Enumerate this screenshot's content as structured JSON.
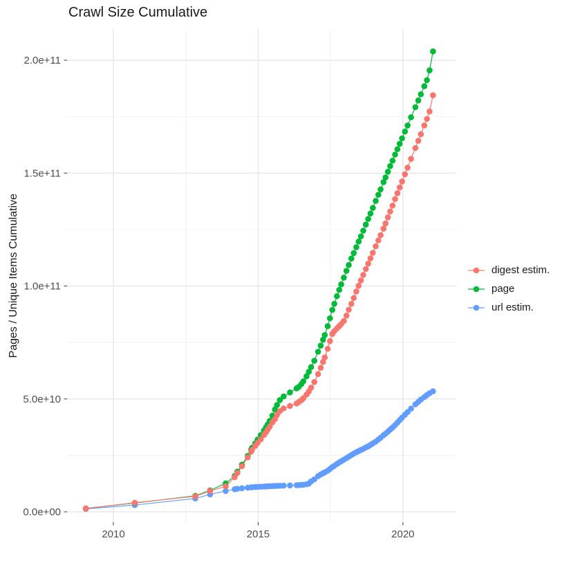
{
  "chart_data": {
    "type": "scatter",
    "title": "Crawl Size Cumulative",
    "x_axis": {
      "lim": [
        2008.4,
        2021.83
      ],
      "ticks": [
        {
          "v": 2010,
          "label": "2010"
        },
        {
          "v": 2015,
          "label": "2015"
        },
        {
          "v": 2020,
          "label": "2020"
        }
      ],
      "minor": [
        2012.5,
        2017.5
      ]
    },
    "y_axis": {
      "title": "Pages / Unique Items Cumulative",
      "unit": 1000000000,
      "lim": [
        -4.6,
        213.8
      ],
      "ticks": [
        {
          "v": 0,
          "label": "0.0e+00"
        },
        {
          "v": 50,
          "label": "5.0e+10"
        },
        {
          "v": 100,
          "label": "1.0e+11"
        },
        {
          "v": 150,
          "label": "1.5e+11"
        },
        {
          "v": 200,
          "label": "2.0e+11"
        }
      ],
      "minor": [
        25,
        75,
        125,
        175
      ]
    },
    "grid": {
      "major_color": "#e5e5e5",
      "minor_color": "#f1f1f1",
      "tick_color": "#333333"
    },
    "legend_position": "right",
    "series": [
      {
        "name": "digest estim.",
        "color": "#F8766D",
        "z": 3,
        "points": [
          [
            2009.05,
            1.5
          ],
          [
            2010.74,
            4.0
          ],
          [
            2012.83,
            6.9
          ],
          [
            2013.34,
            9.2
          ],
          [
            2013.88,
            11.3
          ],
          [
            2014.19,
            15.3
          ],
          [
            2014.28,
            17.2
          ],
          [
            2014.44,
            20.2
          ],
          [
            2014.64,
            24.1
          ],
          [
            2014.76,
            26.7
          ],
          [
            2014.79,
            27.4
          ],
          [
            2014.9,
            29.2
          ],
          [
            2014.98,
            30.5
          ],
          [
            2015.09,
            32.1
          ],
          [
            2015.2,
            34.0
          ],
          [
            2015.27,
            35.2
          ],
          [
            2015.33,
            36.4
          ],
          [
            2015.4,
            37.7
          ],
          [
            2015.49,
            39.6
          ],
          [
            2015.58,
            41.0
          ],
          [
            2015.65,
            42.9
          ],
          [
            2015.75,
            44.6
          ],
          [
            2015.88,
            45.8
          ],
          [
            2016.1,
            46.9
          ],
          [
            2016.33,
            48.0
          ],
          [
            2016.4,
            48.6
          ],
          [
            2016.49,
            49.4
          ],
          [
            2016.56,
            50.3
          ],
          [
            2016.67,
            51.9
          ],
          [
            2016.75,
            53.3
          ],
          [
            2016.83,
            55.0
          ],
          [
            2016.94,
            57.5
          ],
          [
            2017.07,
            61.0
          ],
          [
            2017.16,
            63.8
          ],
          [
            2017.24,
            66.4
          ],
          [
            2017.3,
            68.4
          ],
          [
            2017.4,
            72.2
          ],
          [
            2017.48,
            75.6
          ],
          [
            2017.56,
            78.8
          ],
          [
            2017.63,
            80.0
          ],
          [
            2017.72,
            81.2
          ],
          [
            2017.8,
            82.2
          ],
          [
            2017.87,
            83.2
          ],
          [
            2017.96,
            84.5
          ],
          [
            2018.05,
            86.9
          ],
          [
            2018.13,
            89.5
          ],
          [
            2018.22,
            92.1
          ],
          [
            2018.3,
            94.7
          ],
          [
            2018.39,
            97.6
          ],
          [
            2018.47,
            100.1
          ],
          [
            2018.55,
            102.5
          ],
          [
            2018.63,
            104.9
          ],
          [
            2018.72,
            107.5
          ],
          [
            2018.8,
            109.9
          ],
          [
            2018.88,
            112.3
          ],
          [
            2018.96,
            114.7
          ],
          [
            2019.06,
            117.6
          ],
          [
            2019.15,
            120.2
          ],
          [
            2019.23,
            122.5
          ],
          [
            2019.33,
            125.4
          ],
          [
            2019.4,
            127.7
          ],
          [
            2019.48,
            130.4
          ],
          [
            2019.56,
            133.0
          ],
          [
            2019.64,
            135.6
          ],
          [
            2019.73,
            138.5
          ],
          [
            2019.81,
            141.1
          ],
          [
            2019.89,
            143.7
          ],
          [
            2019.97,
            146.3
          ],
          [
            2020.07,
            149.5
          ],
          [
            2020.16,
            152.4
          ],
          [
            2020.28,
            156.3
          ],
          [
            2020.43,
            161.1
          ],
          [
            2020.53,
            164.3
          ],
          [
            2020.62,
            167.2
          ],
          [
            2020.74,
            171.1
          ],
          [
            2020.83,
            174.0
          ],
          [
            2020.92,
            177.3
          ],
          [
            2021.04,
            184.5
          ]
        ]
      },
      {
        "name": "page",
        "color": "#00BA38",
        "z": 2,
        "points": [
          [
            2009.05,
            1.5
          ],
          [
            2010.74,
            3.9
          ],
          [
            2012.83,
            7.1
          ],
          [
            2013.34,
            9.5
          ],
          [
            2013.88,
            12.6
          ],
          [
            2014.19,
            15.9
          ],
          [
            2014.28,
            17.8
          ],
          [
            2014.44,
            20.9
          ],
          [
            2014.64,
            24.8
          ],
          [
            2014.76,
            27.6
          ],
          [
            2014.79,
            28.4
          ],
          [
            2014.9,
            30.3
          ],
          [
            2014.98,
            32.0
          ],
          [
            2015.09,
            34.0
          ],
          [
            2015.2,
            36.0
          ],
          [
            2015.27,
            37.4
          ],
          [
            2015.33,
            38.7
          ],
          [
            2015.4,
            40.3
          ],
          [
            2015.49,
            42.6
          ],
          [
            2015.58,
            45.3
          ],
          [
            2015.65,
            47.3
          ],
          [
            2015.75,
            49.5
          ],
          [
            2015.88,
            51.1
          ],
          [
            2016.1,
            52.9
          ],
          [
            2016.33,
            54.7
          ],
          [
            2016.4,
            55.3
          ],
          [
            2016.49,
            56.5
          ],
          [
            2016.56,
            57.8
          ],
          [
            2016.67,
            60.0
          ],
          [
            2016.75,
            62.0
          ],
          [
            2016.83,
            64.1
          ],
          [
            2016.94,
            66.9
          ],
          [
            2017.07,
            70.9
          ],
          [
            2017.16,
            73.6
          ],
          [
            2017.24,
            76.2
          ],
          [
            2017.3,
            78.3
          ],
          [
            2017.4,
            82.2
          ],
          [
            2017.48,
            85.7
          ],
          [
            2017.56,
            89.4
          ],
          [
            2017.63,
            92.1
          ],
          [
            2017.72,
            95.5
          ],
          [
            2017.8,
            98.3
          ],
          [
            2017.87,
            100.7
          ],
          [
            2017.96,
            103.7
          ],
          [
            2018.05,
            106.7
          ],
          [
            2018.13,
            109.3
          ],
          [
            2018.22,
            112.2
          ],
          [
            2018.3,
            114.6
          ],
          [
            2018.39,
            117.2
          ],
          [
            2018.47,
            119.7
          ],
          [
            2018.55,
            122.0
          ],
          [
            2018.63,
            124.5
          ],
          [
            2018.72,
            127.2
          ],
          [
            2018.8,
            129.7
          ],
          [
            2018.88,
            132.1
          ],
          [
            2018.96,
            134.6
          ],
          [
            2019.06,
            137.7
          ],
          [
            2019.15,
            140.4
          ],
          [
            2019.23,
            142.8
          ],
          [
            2019.33,
            146.0
          ],
          [
            2019.4,
            148.1
          ],
          [
            2019.48,
            150.6
          ],
          [
            2019.56,
            153.1
          ],
          [
            2019.64,
            155.5
          ],
          [
            2019.73,
            158.2
          ],
          [
            2019.81,
            160.6
          ],
          [
            2019.89,
            163.0
          ],
          [
            2019.97,
            165.4
          ],
          [
            2020.07,
            168.4
          ],
          [
            2020.16,
            171.1
          ],
          [
            2020.28,
            174.7
          ],
          [
            2020.43,
            179.2
          ],
          [
            2020.53,
            182.2
          ],
          [
            2020.62,
            184.9
          ],
          [
            2020.74,
            188.5
          ],
          [
            2020.83,
            191.2
          ],
          [
            2020.92,
            195.5
          ],
          [
            2021.04,
            203.9
          ]
        ]
      },
      {
        "name": "url estim.",
        "color": "#619CFF",
        "z": 1,
        "points": [
          [
            2009.05,
            1.3
          ],
          [
            2010.74,
            3.0
          ],
          [
            2012.83,
            5.9
          ],
          [
            2013.34,
            7.7
          ],
          [
            2013.88,
            9.2
          ],
          [
            2014.19,
            10.0
          ],
          [
            2014.28,
            10.2
          ],
          [
            2014.44,
            10.45
          ],
          [
            2014.64,
            10.7
          ],
          [
            2014.76,
            10.85
          ],
          [
            2014.79,
            10.9
          ],
          [
            2014.9,
            11.0
          ],
          [
            2014.98,
            11.05
          ],
          [
            2015.09,
            11.1
          ],
          [
            2015.2,
            11.2
          ],
          [
            2015.27,
            11.25
          ],
          [
            2015.33,
            11.3
          ],
          [
            2015.4,
            11.35
          ],
          [
            2015.49,
            11.4
          ],
          [
            2015.58,
            11.45
          ],
          [
            2015.65,
            11.5
          ],
          [
            2015.75,
            11.55
          ],
          [
            2015.88,
            11.6
          ],
          [
            2016.1,
            11.7
          ],
          [
            2016.33,
            11.8
          ],
          [
            2016.4,
            11.85
          ],
          [
            2016.49,
            11.9
          ],
          [
            2016.56,
            12.0
          ],
          [
            2016.67,
            12.2
          ],
          [
            2016.75,
            12.5
          ],
          [
            2016.83,
            13.5
          ],
          [
            2016.94,
            14.4
          ],
          [
            2017.07,
            15.8
          ],
          [
            2017.16,
            16.5
          ],
          [
            2017.24,
            17.1
          ],
          [
            2017.3,
            17.5
          ],
          [
            2017.4,
            18.2
          ],
          [
            2017.48,
            19.0
          ],
          [
            2017.56,
            19.8
          ],
          [
            2017.63,
            20.4
          ],
          [
            2017.72,
            21.2
          ],
          [
            2017.8,
            21.9
          ],
          [
            2017.87,
            22.4
          ],
          [
            2017.96,
            23.1
          ],
          [
            2018.05,
            23.8
          ],
          [
            2018.13,
            24.4
          ],
          [
            2018.22,
            25.1
          ],
          [
            2018.3,
            25.8
          ],
          [
            2018.39,
            26.4
          ],
          [
            2018.47,
            26.9
          ],
          [
            2018.55,
            27.4
          ],
          [
            2018.63,
            27.9
          ],
          [
            2018.72,
            28.5
          ],
          [
            2018.8,
            29.0
          ],
          [
            2018.88,
            29.6
          ],
          [
            2018.96,
            30.3
          ],
          [
            2019.06,
            31.1
          ],
          [
            2019.15,
            32.0
          ],
          [
            2019.23,
            32.8
          ],
          [
            2019.33,
            33.9
          ],
          [
            2019.4,
            34.6
          ],
          [
            2019.48,
            35.5
          ],
          [
            2019.56,
            36.4
          ],
          [
            2019.64,
            37.3
          ],
          [
            2019.73,
            38.4
          ],
          [
            2019.81,
            39.5
          ],
          [
            2019.89,
            40.6
          ],
          [
            2019.97,
            41.7
          ],
          [
            2020.07,
            43.0
          ],
          [
            2020.16,
            44.2
          ],
          [
            2020.28,
            45.7
          ],
          [
            2020.43,
            47.6
          ],
          [
            2020.53,
            48.7
          ],
          [
            2020.62,
            49.7
          ],
          [
            2020.74,
            50.8
          ],
          [
            2020.83,
            51.7
          ],
          [
            2020.92,
            52.5
          ],
          [
            2021.04,
            53.4
          ]
        ]
      }
    ]
  }
}
